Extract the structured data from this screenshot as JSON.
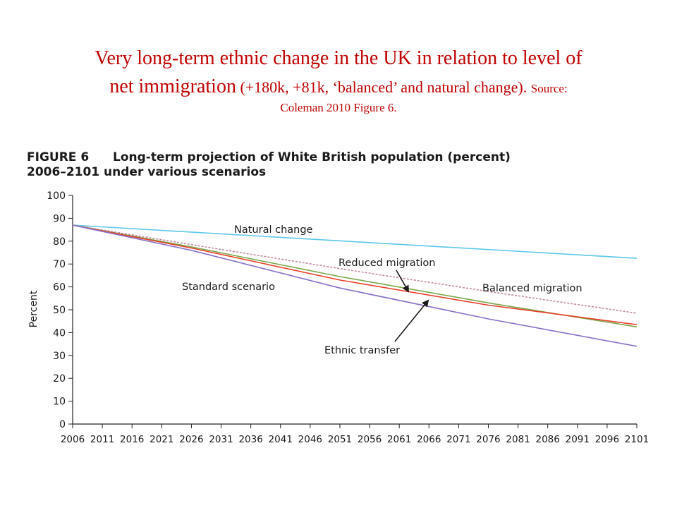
{
  "slide": {
    "title_line1": "Very long-term ethnic change in the UK in relation to level of",
    "title_line2_main": "net immigration",
    "title_line2_paren": " (+180k, +81k, ‘balanced’ and natural change). ",
    "title_line2_source": "Source:",
    "title_line3": "Coleman 2010 Figure 6."
  },
  "chart_data": {
    "type": "line",
    "figure_label": "FIGURE 6",
    "title_line1": "Long-term projection of White British population (percent)",
    "title_line2": "2006–2101 under various scenarios",
    "xlabel": "",
    "ylabel": "Percent",
    "xlim": [
      2006,
      2101
    ],
    "ylim": [
      0,
      100
    ],
    "x_ticks": [
      2006,
      2011,
      2016,
      2021,
      2026,
      2031,
      2036,
      2041,
      2046,
      2051,
      2056,
      2061,
      2066,
      2071,
      2076,
      2081,
      2086,
      2091,
      2096,
      2101
    ],
    "y_ticks": [
      0,
      10,
      20,
      30,
      40,
      50,
      60,
      70,
      80,
      90,
      100
    ],
    "grid": false,
    "series": [
      {
        "name": "Natural change",
        "color": "#5bc8e8",
        "dashed": false,
        "x": [
          2006,
          2101
        ],
        "values": [
          87,
          72.5
        ]
      },
      {
        "name": "Balanced migration",
        "color": "#c08aa0",
        "dashed": true,
        "x": [
          2006,
          2026,
          2051,
          2076,
          2101
        ],
        "values": [
          87,
          78.5,
          68,
          58,
          48.5
        ]
      },
      {
        "name": "Reduced migration",
        "color": "#7aa84a",
        "dashed": false,
        "x": [
          2006,
          2026,
          2051,
          2076,
          2101
        ],
        "values": [
          87,
          77.5,
          64.5,
          53,
          42.5
        ]
      },
      {
        "name": "Ethnic transfer",
        "color": "#e8402a",
        "dashed": false,
        "x": [
          2006,
          2026,
          2051,
          2076,
          2101
        ],
        "values": [
          87,
          77,
          63,
          52,
          43.5
        ]
      },
      {
        "name": "Standard scenario",
        "color": "#8870c8",
        "dashed": false,
        "x": [
          2006,
          2026,
          2051,
          2076,
          2101
        ],
        "values": [
          87,
          76,
          59.5,
          46,
          34
        ]
      }
    ],
    "annotations": [
      {
        "text": "Natural change"
      },
      {
        "text": "Reduced migration"
      },
      {
        "text": "Balanced migration"
      },
      {
        "text": "Standard scenario"
      },
      {
        "text": "Ethnic transfer"
      }
    ]
  }
}
